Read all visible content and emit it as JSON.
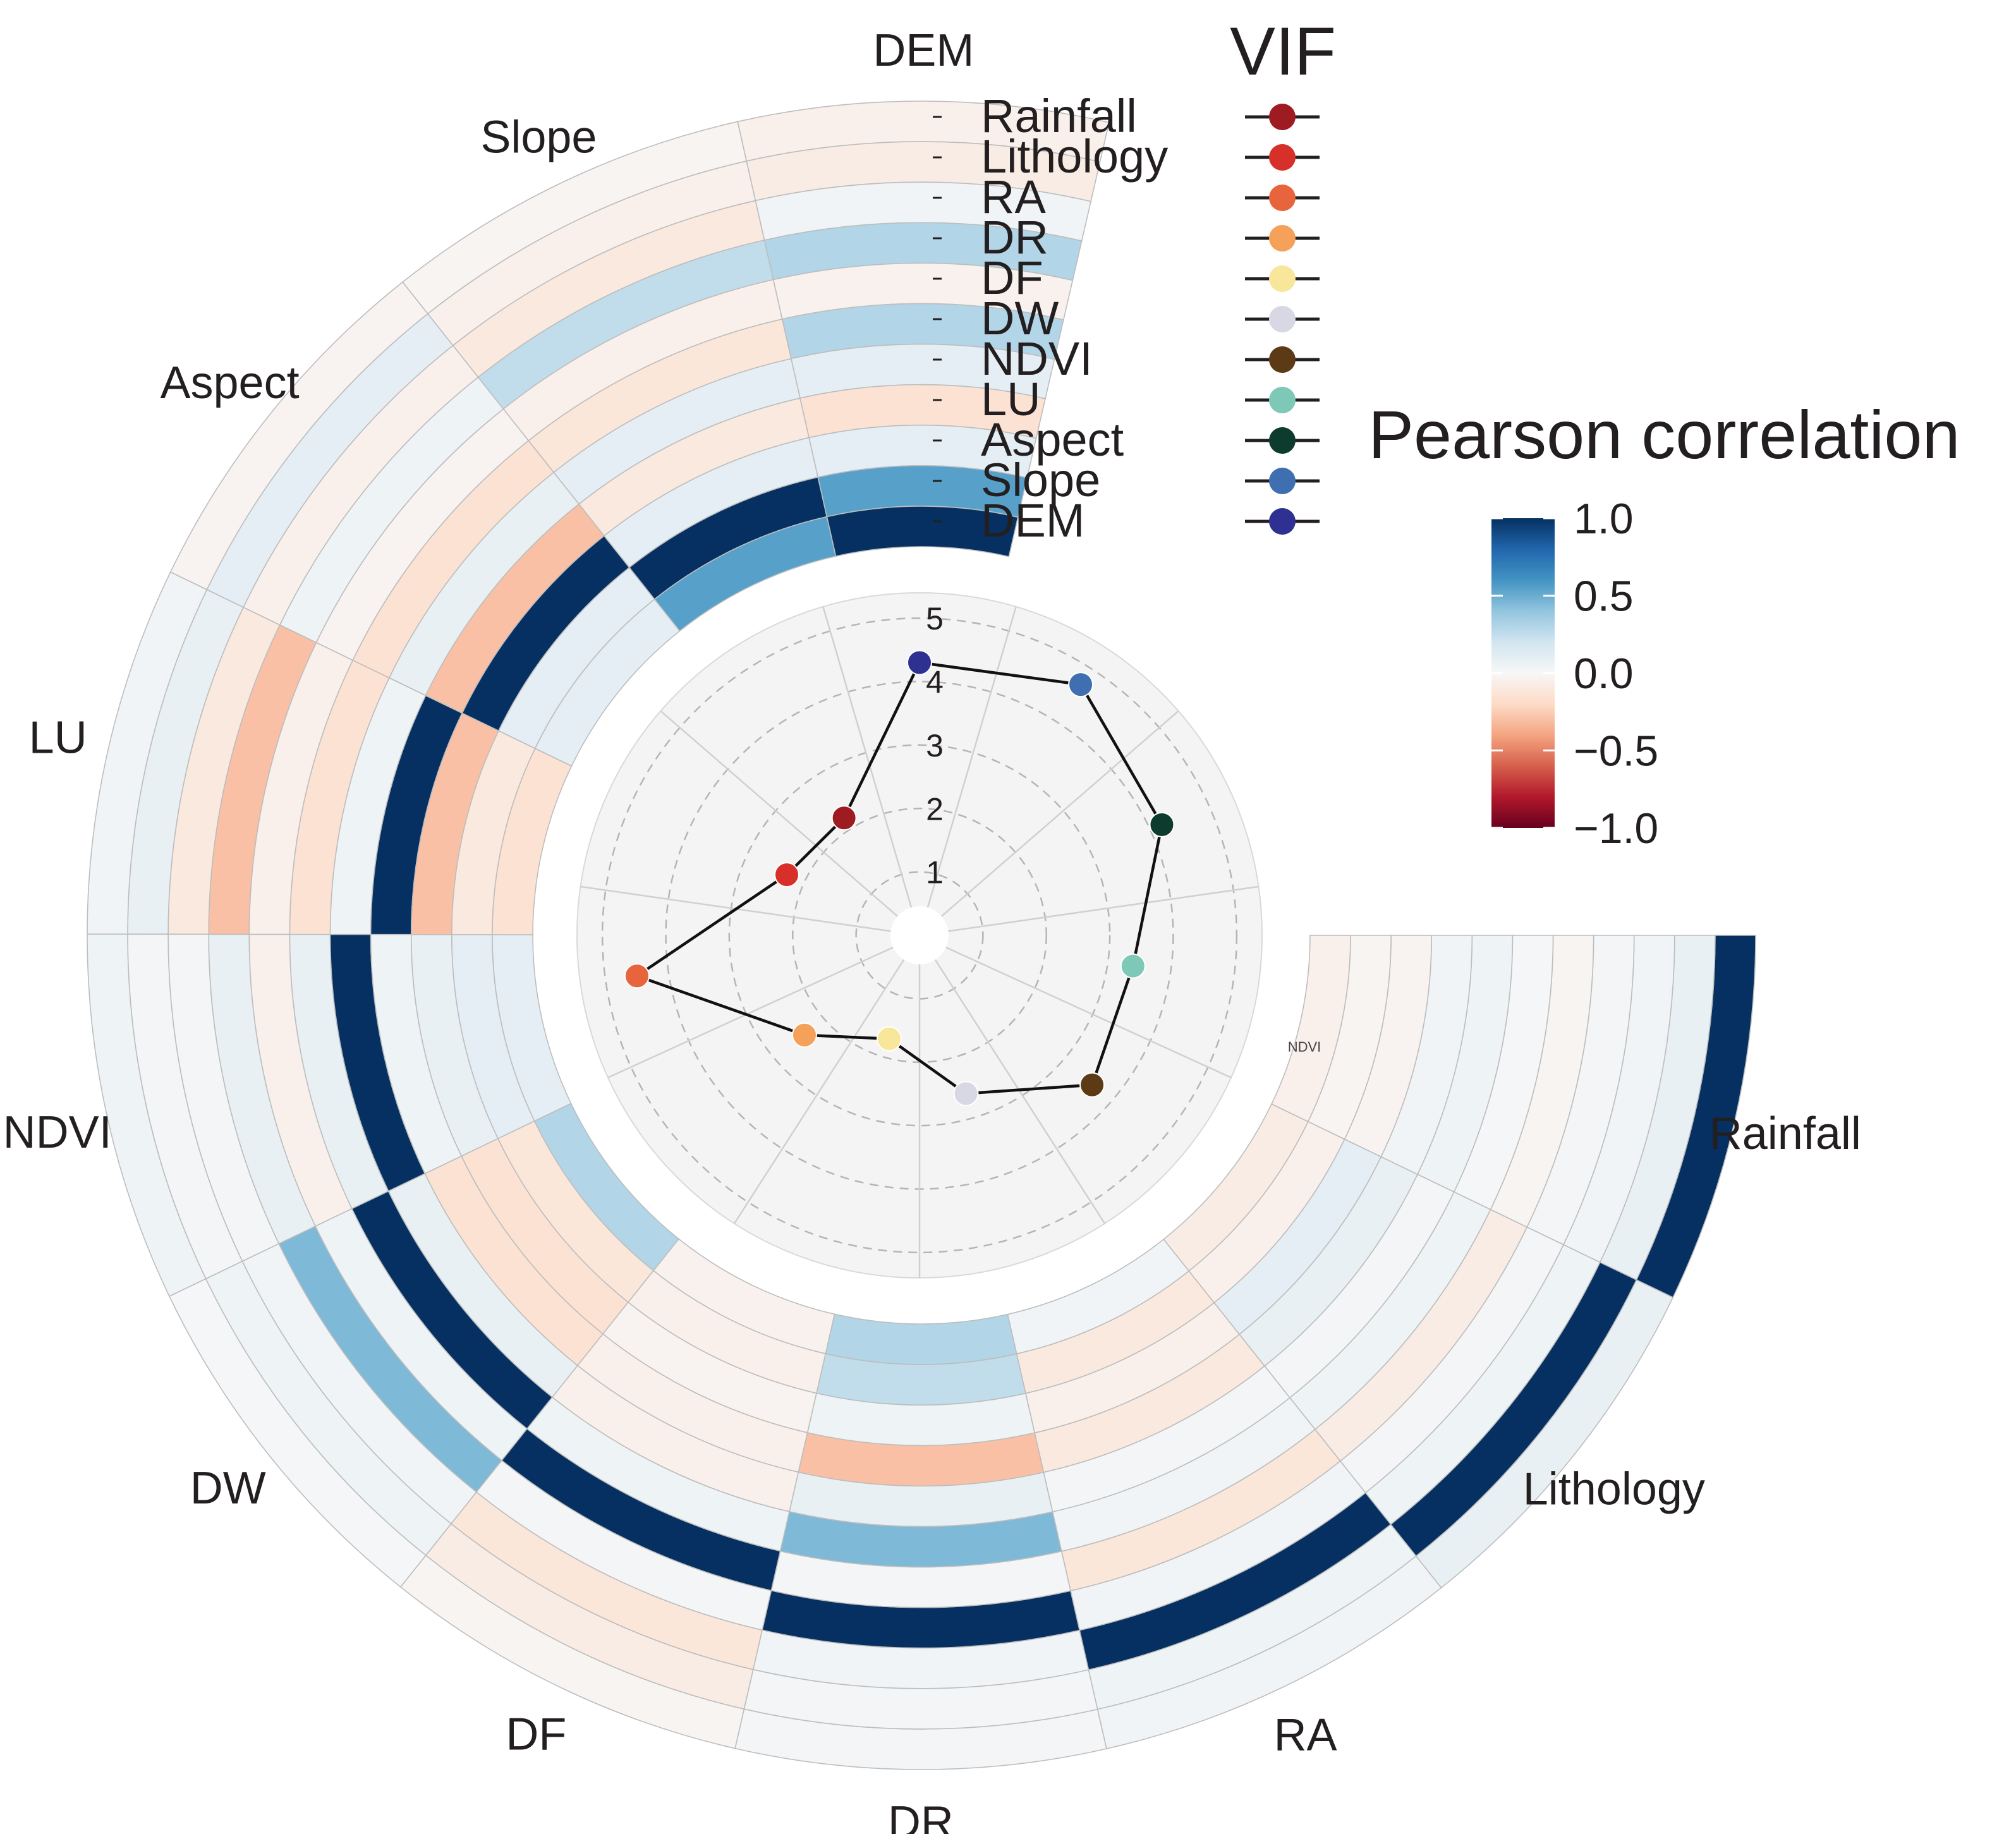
{
  "chart_data": [
    {
      "type": "heatmap",
      "layout": "circular",
      "title": "Pearson correlation",
      "variables": [
        "Rainfall",
        "Lithology",
        "RA",
        "DR",
        "DF",
        "DW",
        "NDVI",
        "LU",
        "Aspect",
        "Slope",
        "DEM"
      ],
      "ring_order_outer_to_inner": [
        "Rainfall",
        "Lithology",
        "RA",
        "DR",
        "DF",
        "DW",
        "NDVI",
        "LU",
        "Aspect",
        "Slope",
        "DEM"
      ],
      "matrix": [
        [
          1.0,
          0.08,
          0.03,
          0.02,
          -0.02,
          0.01,
          0.05,
          0.03,
          -0.03,
          -0.02,
          -0.05
        ],
        [
          0.08,
          1.0,
          0.05,
          0.02,
          -0.08,
          0.05,
          0.02,
          0.08,
          0.1,
          -0.05,
          -0.08
        ],
        [
          0.03,
          0.05,
          1.0,
          0.03,
          -0.12,
          0.03,
          0.02,
          -0.1,
          -0.05,
          -0.1,
          0.03
        ],
        [
          0.02,
          0.02,
          0.03,
          1.0,
          0.02,
          0.45,
          0.08,
          -0.3,
          0.05,
          0.25,
          0.3
        ],
        [
          -0.02,
          -0.08,
          -0.12,
          0.02,
          1.0,
          0.05,
          -0.05,
          -0.05,
          -0.03,
          -0.05,
          -0.04
        ],
        [
          0.01,
          0.05,
          0.03,
          0.45,
          0.05,
          1.0,
          0.08,
          -0.15,
          -0.15,
          -0.12,
          0.3
        ],
        [
          0.05,
          0.02,
          0.02,
          0.08,
          -0.05,
          0.08,
          1.0,
          0.05,
          0.08,
          0.1,
          0.1
        ],
        [
          0.03,
          0.08,
          -0.1,
          -0.3,
          -0.05,
          -0.15,
          0.05,
          1.0,
          -0.3,
          -0.1,
          -0.15
        ],
        [
          -0.03,
          0.1,
          -0.05,
          0.05,
          -0.03,
          -0.15,
          0.08,
          -0.3,
          1.0,
          0.1,
          0.1
        ],
        [
          -0.02,
          -0.05,
          -0.1,
          0.25,
          -0.05,
          -0.12,
          0.1,
          -0.1,
          0.1,
          1.0,
          0.55
        ],
        [
          -0.05,
          -0.08,
          0.03,
          0.3,
          -0.04,
          0.3,
          0.1,
          -0.15,
          0.1,
          0.55,
          1.0
        ]
      ],
      "colorbar": {
        "range": [
          -1.0,
          1.0
        ],
        "ticks": [
          "1.0",
          "0.5",
          "0.0",
          "−0.5",
          "−1.0"
        ],
        "tick_values": [
          1.0,
          0.5,
          0.0,
          -0.5,
          -1.0
        ],
        "colors": [
          "#67001f",
          "#b2182b",
          "#d6604d",
          "#f4a582",
          "#fddbc7",
          "#f7f7f7",
          "#d1e5f0",
          "#92c5de",
          "#4393c3",
          "#2166ac",
          "#053061"
        ]
      },
      "grid_color": "#bdbdbd"
    },
    {
      "type": "radar",
      "title": "VIF",
      "axes": [
        "DEM",
        "Slope",
        "Aspect",
        "LU",
        "NDVI",
        "DW",
        "DF",
        "DR",
        "RA",
        "Lithology",
        "Rainfall"
      ],
      "values": [
        4.3,
        4.7,
        4.2,
        3.4,
        3.6,
        2.6,
        1.7,
        2.4,
        4.5,
        2.3,
        2.2
      ],
      "point_colors": [
        "#2e3192",
        "#3f6fb0",
        "#0d3b2e",
        "#7ec8b8",
        "#5c3a16",
        "#d8d8e4",
        "#f8e79a",
        "#f5a15a",
        "#e8643c",
        "#d7302a",
        "#9e1b22"
      ],
      "radial_ticks": [
        "1",
        "2",
        "3",
        "4",
        "5"
      ],
      "tick_values": [
        1,
        2,
        3,
        4,
        5
      ],
      "rmax": 5.4
    }
  ],
  "legend": {
    "title": "VIF",
    "items": [
      {
        "label": "Rainfall",
        "color": "#9e1b22"
      },
      {
        "label": "Lithology",
        "color": "#d7302a"
      },
      {
        "label": "RA",
        "color": "#e8643c"
      },
      {
        "label": "DR",
        "color": "#f5a15a"
      },
      {
        "label": "DF",
        "color": "#f8e79a"
      },
      {
        "label": "DW",
        "color": "#d8d8e4"
      },
      {
        "label": "NDVI",
        "color": "#5c3a16"
      },
      {
        "label": "LU",
        "color": "#7ec8b8"
      },
      {
        "label": "Aspect",
        "color": "#0d3b2e"
      },
      {
        "label": "Slope",
        "color": "#3f6fb0"
      },
      {
        "label": "DEM",
        "color": "#2e3192"
      }
    ]
  },
  "stray_label": "NDVI"
}
